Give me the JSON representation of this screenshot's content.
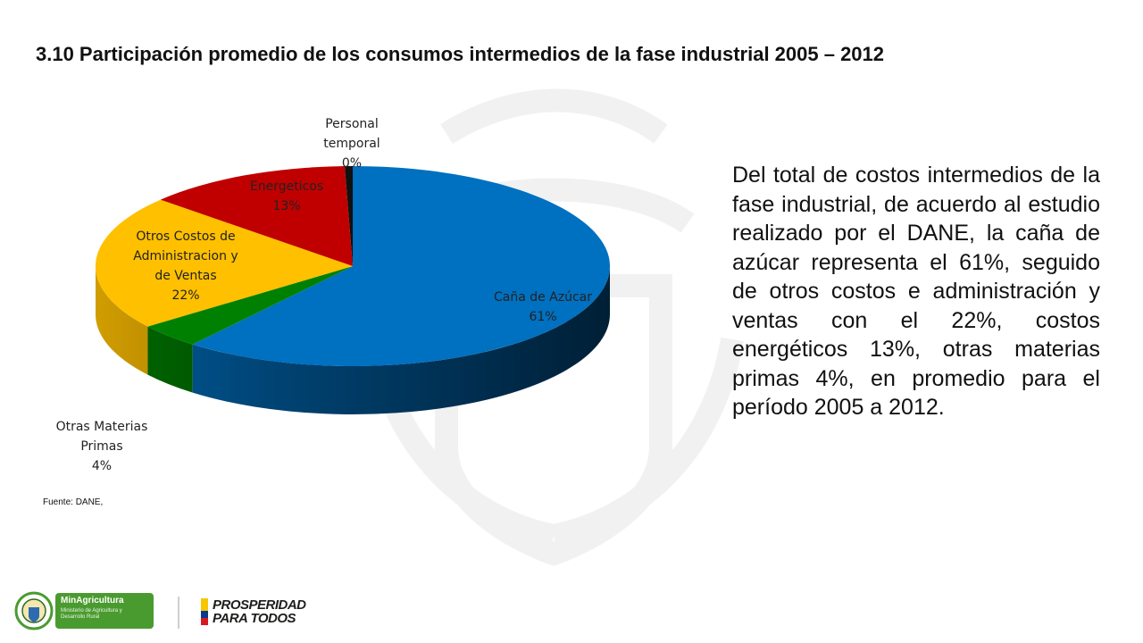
{
  "slide": {
    "title": "3.10 Participación promedio de los consumos intermedios de la fase industrial 2005 – 2012",
    "description": "Del total de costos intermedios de la fase industrial, de acuerdo al estudio realizado por el DANE, la caña de azúcar representa el 61%, seguido de otros costos e administración y ventas con el 22%, costos energéticos 13%, otras materias primas 4%, en promedio para el período 2005 a 2012.",
    "source": "Fuente: DANE,"
  },
  "footer": {
    "ministry_name": "MinAgricultura",
    "ministry_subtitle": "Ministerio de Agricultura y Desarrollo Rural",
    "campaign_line1": "PROSPERIDAD",
    "campaign_line2": "PARA TODOS",
    "ministry_color": "#4a9b2f",
    "flag_colors": [
      "#f7c600",
      "#0a3a8c",
      "#d71920"
    ]
  },
  "chart_data": {
    "type": "pie",
    "style": "3d",
    "title": "",
    "legend": "none",
    "slices": [
      {
        "label": "Caña de Azúcar",
        "value": 61,
        "display": "61%",
        "color": "#0070c0"
      },
      {
        "label": "Otras Materias Primas",
        "value": 4,
        "display": "4%",
        "color": "#008000"
      },
      {
        "label": "Otros Costos de Administracion y de Ventas",
        "value": 22,
        "display": "22%",
        "color": "#ffc000"
      },
      {
        "label": "Energeticos",
        "value": 13,
        "display": "13%",
        "color": "#c00000"
      },
      {
        "label": "Personal temporal",
        "value": 0.5,
        "display": "0%",
        "color": "#111111"
      }
    ],
    "label_lines": [
      [
        "Caña de Azúcar",
        "61%"
      ],
      [
        "Otras Materias",
        "Primas",
        "4%"
      ],
      [
        "Otros Costos de",
        "Administracion y",
        "de Ventas",
        "22%"
      ],
      [
        "Energeticos",
        "13%"
      ],
      [
        "Personal",
        "temporal",
        "0%"
      ]
    ]
  }
}
